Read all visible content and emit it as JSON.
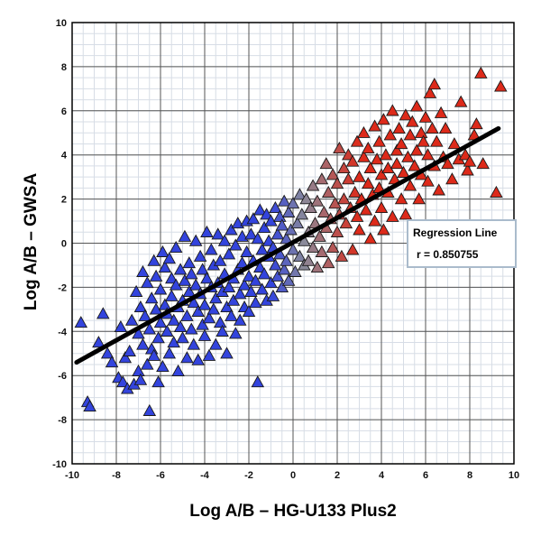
{
  "chart_data": {
    "type": "scatter",
    "marker": "triangle",
    "title": "",
    "xlabel": "Log A/B – HG-U133 Plus2",
    "ylabel": "Log A/B – GWSA",
    "xlim": [
      -10,
      10
    ],
    "ylim": [
      -10,
      10
    ],
    "xticks": [
      "-10",
      "-8",
      "-6",
      "-4",
      "-2",
      "0",
      "2",
      "4",
      "6",
      "8",
      "10"
    ],
    "yticks": [
      "-10",
      "-8",
      "-6",
      "-4",
      "-2",
      "0",
      "2",
      "4",
      "6",
      "8",
      "10"
    ],
    "grid": true,
    "minor_grid": true,
    "color_scale": {
      "low": "#3344dd",
      "mid": "#8a8a9a",
      "high": "#dd2a1a"
    },
    "regression": {
      "label": "Regression Line",
      "r_text": "r = 0.850755",
      "r": 0.850755,
      "x": [
        -9.8,
        9.3
      ],
      "y": [
        -5.4,
        5.2
      ],
      "color": "#000000"
    },
    "points_note": "approx. 1200 points; shown here as a representative sample read from the plot",
    "points": [
      [
        -9.6,
        -3.6
      ],
      [
        -9.3,
        -7.2
      ],
      [
        -9.2,
        -7.4
      ],
      [
        -8.8,
        -4.5
      ],
      [
        -8.6,
        -3.2
      ],
      [
        -8.4,
        -5.0
      ],
      [
        -8.2,
        -5.4
      ],
      [
        -7.9,
        -6.1
      ],
      [
        -7.8,
        -3.8
      ],
      [
        -7.7,
        -6.3
      ],
      [
        -7.6,
        -5.2
      ],
      [
        -7.5,
        -6.6
      ],
      [
        -7.4,
        -4.9
      ],
      [
        -7.3,
        -3.5
      ],
      [
        -7.2,
        -6.4
      ],
      [
        -7.1,
        -2.2
      ],
      [
        -7.0,
        -5.8
      ],
      [
        -7.0,
        -4.1
      ],
      [
        -6.9,
        -2.9
      ],
      [
        -6.9,
        -6.2
      ],
      [
        -6.8,
        -1.3
      ],
      [
        -6.8,
        -4.6
      ],
      [
        -6.7,
        -3.3
      ],
      [
        -6.6,
        -5.5
      ],
      [
        -6.6,
        -1.8
      ],
      [
        -6.5,
        -7.6
      ],
      [
        -6.5,
        -3.9
      ],
      [
        -6.4,
        -2.5
      ],
      [
        -6.4,
        -4.8
      ],
      [
        -6.3,
        -0.8
      ],
      [
        -6.3,
        -5.1
      ],
      [
        -6.2,
        -3.0
      ],
      [
        -6.2,
        -1.5
      ],
      [
        -6.1,
        -4.3
      ],
      [
        -6.1,
        -6.3
      ],
      [
        -6.0,
        -2.1
      ],
      [
        -6.0,
        -3.6
      ],
      [
        -5.9,
        -0.4
      ],
      [
        -5.9,
        -5.6
      ],
      [
        -5.8,
        -2.8
      ],
      [
        -5.8,
        -1.1
      ],
      [
        -5.7,
        -4.0
      ],
      [
        -5.7,
        -3.2
      ],
      [
        -5.6,
        -0.7
      ],
      [
        -5.6,
        -5.0
      ],
      [
        -5.5,
        -2.4
      ],
      [
        -5.5,
        -1.6
      ],
      [
        -5.4,
        -3.5
      ],
      [
        -5.4,
        -4.5
      ],
      [
        -5.3,
        -1.9
      ],
      [
        -5.3,
        -0.2
      ],
      [
        -5.2,
        -2.9
      ],
      [
        -5.2,
        -5.8
      ],
      [
        -5.1,
        -3.8
      ],
      [
        -5.1,
        -1.2
      ],
      [
        -5.0,
        -2.6
      ],
      [
        -5.0,
        -4.3
      ],
      [
        -4.9,
        0.3
      ],
      [
        -4.9,
        -1.7
      ],
      [
        -4.8,
        -3.3
      ],
      [
        -4.8,
        -5.2
      ],
      [
        -4.7,
        -2.2
      ],
      [
        -4.7,
        -0.9
      ],
      [
        -4.6,
        -3.9
      ],
      [
        -4.6,
        -1.4
      ],
      [
        -4.5,
        -2.7
      ],
      [
        -4.5,
        -4.6
      ],
      [
        -4.4,
        0.1
      ],
      [
        -4.4,
        -1.9
      ],
      [
        -4.3,
        -3.1
      ],
      [
        -4.3,
        -5.3
      ],
      [
        -4.2,
        -2.3
      ],
      [
        -4.2,
        -0.6
      ],
      [
        -4.1,
        -3.7
      ],
      [
        -4.1,
        -1.2
      ],
      [
        -4.0,
        -2.8
      ],
      [
        -4.0,
        -4.2
      ],
      [
        -3.9,
        0.5
      ],
      [
        -3.9,
        -1.6
      ],
      [
        -3.8,
        -3.4
      ],
      [
        -3.8,
        -5.1
      ],
      [
        -3.7,
        -2.0
      ],
      [
        -3.7,
        -0.3
      ],
      [
        -3.6,
        -3.0
      ],
      [
        -3.6,
        -1.0
      ],
      [
        -3.5,
        -2.5
      ],
      [
        -3.5,
        -4.6
      ],
      [
        -3.4,
        0.4
      ],
      [
        -3.4,
        -1.8
      ],
      [
        -3.3,
        -3.6
      ],
      [
        -3.3,
        -0.8
      ],
      [
        -3.2,
        -2.2
      ],
      [
        -3.2,
        -4.0
      ],
      [
        -3.1,
        0.1
      ],
      [
        -3.1,
        -1.4
      ],
      [
        -3.0,
        -2.9
      ],
      [
        -3.0,
        -5.0
      ],
      [
        -2.9,
        -0.5
      ],
      [
        -2.9,
        -2.0
      ],
      [
        -2.8,
        -3.3
      ],
      [
        -2.8,
        0.6
      ],
      [
        -2.7,
        -1.6
      ],
      [
        -2.7,
        -2.6
      ],
      [
        -2.6,
        -0.1
      ],
      [
        -2.6,
        -4.1
      ],
      [
        -2.5,
        0.9
      ],
      [
        -2.5,
        -1.2
      ],
      [
        -2.4,
        -2.3
      ],
      [
        -2.4,
        -3.5
      ],
      [
        -2.3,
        0.3
      ],
      [
        -2.3,
        -0.9
      ],
      [
        -2.2,
        -1.9
      ],
      [
        -2.2,
        -2.9
      ],
      [
        -2.1,
        1.0
      ],
      [
        -2.1,
        -0.4
      ],
      [
        -2.0,
        -1.5
      ],
      [
        -2.0,
        -3.1
      ],
      [
        -1.9,
        0.4
      ],
      [
        -1.9,
        -2.2
      ],
      [
        -1.8,
        -0.8
      ],
      [
        -1.8,
        1.1
      ],
      [
        -1.7,
        -1.7
      ],
      [
        -1.7,
        -2.7
      ],
      [
        -1.6,
        0.2
      ],
      [
        -1.6,
        -6.3
      ],
      [
        -1.5,
        -1.1
      ],
      [
        -1.5,
        1.5
      ],
      [
        -1.4,
        -0.3
      ],
      [
        -1.4,
        -2.1
      ],
      [
        -1.3,
        0.7
      ],
      [
        -1.3,
        -1.4
      ],
      [
        -1.2,
        -2.6
      ],
      [
        -1.2,
        1.3
      ],
      [
        -1.1,
        -0.6
      ],
      [
        -1.1,
        0.1
      ],
      [
        -1.0,
        -1.8
      ],
      [
        -1.0,
        1.0
      ],
      [
        -0.9,
        -0.2
      ],
      [
        -0.9,
        -2.4
      ],
      [
        -0.8,
        1.6
      ],
      [
        -0.8,
        -1.0
      ],
      [
        -0.7,
        0.4
      ],
      [
        -0.7,
        -1.5
      ],
      [
        -0.6,
        1.2
      ],
      [
        -0.6,
        -0.5
      ],
      [
        -0.5,
        -2.0
      ],
      [
        -0.5,
        0.8
      ],
      [
        -0.4,
        1.9
      ],
      [
        -0.4,
        -1.2
      ],
      [
        -0.3,
        0.2
      ],
      [
        -0.3,
        -0.8
      ],
      [
        -0.2,
        1.4
      ],
      [
        -0.2,
        -1.7
      ],
      [
        -0.1,
        0.6
      ],
      [
        0.0,
        -0.3
      ],
      [
        0.0,
        1.8
      ],
      [
        0.1,
        -1.3
      ],
      [
        0.2,
        0.9
      ],
      [
        0.3,
        2.2
      ],
      [
        0.3,
        -0.6
      ],
      [
        0.4,
        1.3
      ],
      [
        0.5,
        -1.0
      ],
      [
        0.5,
        0.1
      ],
      [
        0.6,
        2.0
      ],
      [
        0.7,
        0.5
      ],
      [
        0.7,
        -0.8
      ],
      [
        0.8,
        1.6
      ],
      [
        0.9,
        -0.2
      ],
      [
        0.9,
        2.6
      ],
      [
        1.0,
        0.9
      ],
      [
        1.1,
        -1.1
      ],
      [
        1.1,
        1.9
      ],
      [
        1.2,
        0.3
      ],
      [
        1.3,
        2.9
      ],
      [
        1.3,
        -0.4
      ],
      [
        1.4,
        1.4
      ],
      [
        1.5,
        3.6
      ],
      [
        1.5,
        0.7
      ],
      [
        1.6,
        -0.9
      ],
      [
        1.6,
        2.3
      ],
      [
        1.7,
        1.1
      ],
      [
        1.8,
        3.1
      ],
      [
        1.8,
        -0.2
      ],
      [
        1.9,
        1.8
      ],
      [
        2.0,
        0.5
      ],
      [
        2.0,
        2.7
      ],
      [
        2.1,
        4.3
      ],
      [
        2.1,
        1.3
      ],
      [
        2.2,
        -0.6
      ],
      [
        2.3,
        3.4
      ],
      [
        2.3,
        2.0
      ],
      [
        2.4,
        0.9
      ],
      [
        2.5,
        2.9
      ],
      [
        2.5,
        4.0
      ],
      [
        2.6,
        1.6
      ],
      [
        2.7,
        -0.3
      ],
      [
        2.7,
        3.7
      ],
      [
        2.8,
        2.3
      ],
      [
        2.9,
        1.2
      ],
      [
        2.9,
        4.6
      ],
      [
        3.0,
        3.0
      ],
      [
        3.0,
        0.6
      ],
      [
        3.1,
        2.0
      ],
      [
        3.2,
        3.9
      ],
      [
        3.2,
        5.0
      ],
      [
        3.3,
        1.5
      ],
      [
        3.4,
        2.7
      ],
      [
        3.4,
        4.3
      ],
      [
        3.5,
        0.2
      ],
      [
        3.5,
        3.4
      ],
      [
        3.6,
        2.2
      ],
      [
        3.7,
        5.3
      ],
      [
        3.7,
        1.0
      ],
      [
        3.8,
        3.8
      ],
      [
        3.9,
        2.5
      ],
      [
        3.9,
        4.6
      ],
      [
        4.0,
        1.6
      ],
      [
        4.0,
        3.1
      ],
      [
        4.1,
        5.6
      ],
      [
        4.1,
        0.6
      ],
      [
        4.2,
        4.0
      ],
      [
        4.3,
        2.3
      ],
      [
        4.3,
        3.4
      ],
      [
        4.4,
        4.9
      ],
      [
        4.5,
        1.2
      ],
      [
        4.5,
        6.0
      ],
      [
        4.6,
        2.9
      ],
      [
        4.7,
        4.2
      ],
      [
        4.7,
        3.6
      ],
      [
        4.8,
        5.2
      ],
      [
        4.9,
        2.0
      ],
      [
        4.9,
        4.5
      ],
      [
        5.0,
        3.2
      ],
      [
        5.1,
        5.8
      ],
      [
        5.1,
        1.3
      ],
      [
        5.2,
        3.9
      ],
      [
        5.3,
        4.9
      ],
      [
        5.3,
        2.6
      ],
      [
        5.4,
        5.5
      ],
      [
        5.5,
        3.5
      ],
      [
        5.6,
        6.2
      ],
      [
        5.6,
        4.2
      ],
      [
        5.7,
        2.0
      ],
      [
        5.8,
        5.0
      ],
      [
        5.8,
        3.1
      ],
      [
        5.9,
        4.6
      ],
      [
        6.0,
        5.7
      ],
      [
        6.1,
        2.8
      ],
      [
        6.1,
        4.0
      ],
      [
        6.2,
        6.8
      ],
      [
        6.3,
        5.2
      ],
      [
        6.4,
        3.5
      ],
      [
        6.4,
        7.2
      ],
      [
        6.5,
        4.6
      ],
      [
        6.6,
        2.4
      ],
      [
        6.7,
        5.9
      ],
      [
        6.8,
        3.9
      ],
      [
        6.9,
        5.2
      ],
      [
        7.0,
        3.6
      ],
      [
        7.2,
        2.9
      ],
      [
        7.3,
        4.5
      ],
      [
        7.5,
        3.8
      ],
      [
        7.6,
        6.4
      ],
      [
        7.8,
        4.0
      ],
      [
        7.9,
        3.3
      ],
      [
        8.0,
        3.7
      ],
      [
        8.2,
        4.9
      ],
      [
        8.3,
        5.4
      ],
      [
        8.5,
        7.7
      ],
      [
        8.6,
        3.6
      ],
      [
        9.2,
        2.3
      ],
      [
        9.4,
        7.1
      ]
    ]
  }
}
